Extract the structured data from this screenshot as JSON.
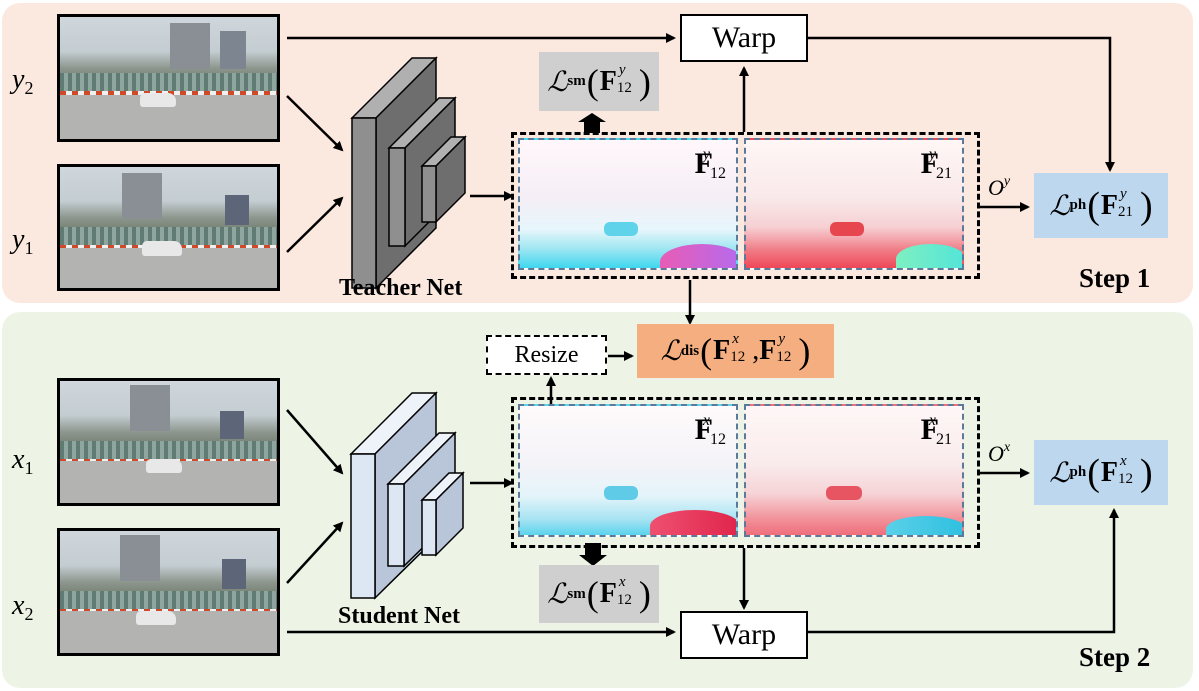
{
  "step1": {
    "label": "Step 1",
    "teacher_net": "Teacher Net",
    "input_top": {
      "var": "y",
      "sub": "2"
    },
    "input_bottom": {
      "var": "y",
      "sub": "1"
    },
    "warp": "Warp",
    "loss_sm": {
      "script": "ℒ",
      "sub": "sm",
      "f": "F",
      "fsup": "y",
      "fsub": "12"
    },
    "flow_a": {
      "f": "F",
      "sup": "y",
      "sub": "12"
    },
    "flow_b": {
      "f": "F",
      "sup": "y",
      "sub": "21"
    },
    "occlusion": {
      "o": "O",
      "sup": "y"
    },
    "loss_ph": {
      "script": "ℒ",
      "sub": "ph",
      "f": "F",
      "fsup": "y",
      "fsub": "21"
    }
  },
  "middle": {
    "resize": "Resize",
    "loss_dis": {
      "script": "ℒ",
      "sub": "dis",
      "f1": "F",
      "f1sup": "x",
      "f1sub": "12",
      "f2": "F",
      "f2sup": "y",
      "f2sub": "12"
    }
  },
  "step2": {
    "label": "Step 2",
    "student_net": "Student Net",
    "input_top": {
      "var": "x",
      "sub": "1"
    },
    "input_bottom": {
      "var": "x",
      "sub": "2"
    },
    "warp": "Warp",
    "loss_sm": {
      "script": "ℒ",
      "sub": "sm",
      "f": "F",
      "fsup": "x",
      "fsub": "12"
    },
    "flow_a": {
      "f": "F",
      "sup": "x",
      "sub": "12"
    },
    "flow_b": {
      "f": "F",
      "sup": "x",
      "sub": "21"
    },
    "occlusion": {
      "o": "O",
      "sup": "x"
    },
    "loss_ph": {
      "script": "ℒ",
      "sub": "ph",
      "f": "F",
      "fsup": "x",
      "fsub": "12"
    }
  },
  "colors": {
    "step1_bg": "#fbe9df",
    "step2_bg": "#edf4e6",
    "loss_gray": "#cfcfcf",
    "loss_blue": "#bcd7ee",
    "loss_orange": "#f5ae7f",
    "teacher_net": "#8f8f8f",
    "student_net": "#dde6f3"
  }
}
